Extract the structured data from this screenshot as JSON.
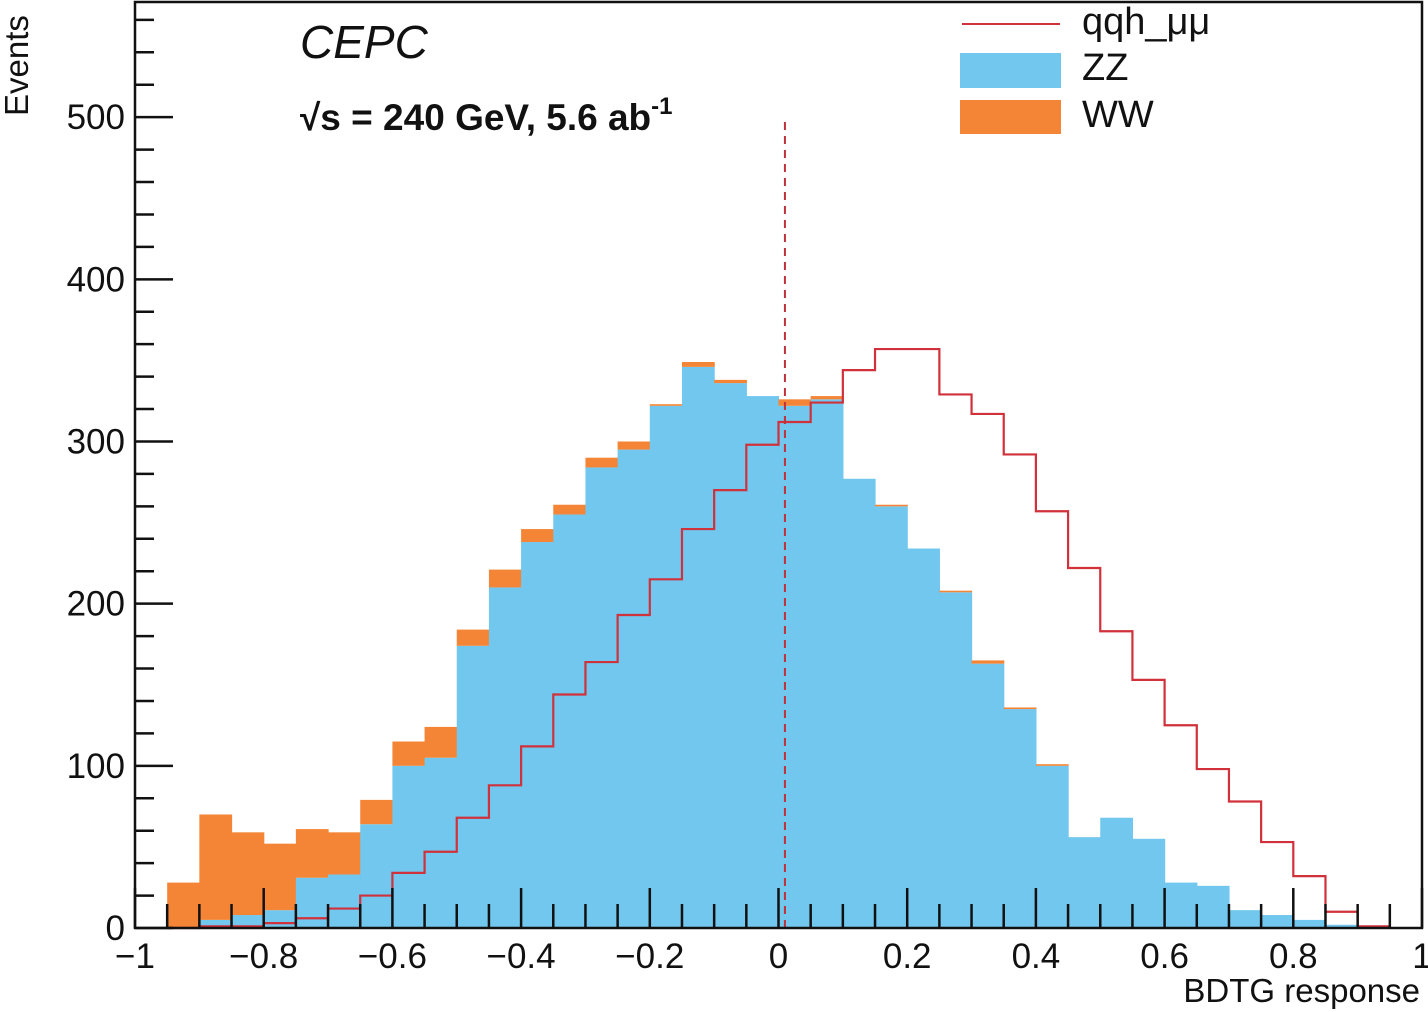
{
  "chart_data": {
    "type": "bar",
    "subtype": "stacked-histogram-with-step-line",
    "annotations": {
      "experiment": "CEPC",
      "energy_prefix": "√s = 240 GeV, 5.6 ab",
      "energy_superscript": "-1"
    },
    "xlabel": "BDTG response",
    "ylabel": "Events",
    "xlim": [
      -1,
      1
    ],
    "ylim": [
      0,
      571
    ],
    "x_major_ticks": [
      -1,
      -0.8,
      -0.6,
      -0.4,
      -0.2,
      0,
      0.2,
      0.4,
      0.6,
      0.8,
      1
    ],
    "x_tick_labels": [
      "−1",
      "−0.8",
      "−0.6",
      "−0.4",
      "−0.2",
      "0",
      "0.2",
      "0.4",
      "0.6",
      "0.8",
      "1"
    ],
    "x_minor_step": 0.05,
    "y_major_ticks": [
      0,
      100,
      200,
      300,
      400,
      500
    ],
    "y_tick_labels": [
      "0",
      "100",
      "200",
      "300",
      "400",
      "500"
    ],
    "y_minor_step": 20,
    "grid": false,
    "legend_position": "top-right",
    "bin_edges_start": -0.95,
    "bin_width": 0.05,
    "series": [
      {
        "name": "ZZ",
        "kind": "filled-stack",
        "color": "#71C7EE",
        "values": [
          0,
          5,
          8,
          11,
          31,
          33,
          64,
          100,
          105,
          174,
          210,
          238,
          255,
          284,
          295,
          322,
          346,
          336,
          328,
          322,
          326,
          277,
          260,
          234,
          207,
          163,
          135,
          100,
          56,
          68,
          55,
          28,
          26,
          11,
          8,
          5,
          2,
          0
        ]
      },
      {
        "name": "WW",
        "kind": "filled-stack",
        "color": "#F58536",
        "values": [
          28,
          65,
          51,
          41,
          30,
          26,
          15,
          15,
          19,
          10,
          11,
          8,
          6,
          6,
          5,
          1,
          3,
          2,
          0,
          4,
          2,
          0,
          1,
          0,
          1,
          2,
          1,
          1,
          0,
          0,
          0,
          0,
          0,
          0,
          0,
          0,
          0,
          0
        ]
      },
      {
        "name": "qqh_μμ",
        "kind": "step-line",
        "color": "#D0313A",
        "values": [
          0,
          1,
          1,
          3,
          6,
          12,
          20,
          34,
          47,
          68,
          88,
          112,
          144,
          164,
          193,
          215,
          246,
          270,
          298,
          312,
          324,
          344,
          357,
          357,
          329,
          317,
          292,
          257,
          222,
          183,
          153,
          125,
          98,
          78,
          53,
          32,
          10,
          1
        ]
      }
    ],
    "cut_line": {
      "x": 0.01,
      "y_top": 500,
      "style": "dashed",
      "color": "#C0313A"
    },
    "legend": [
      {
        "label": "qqh_μμ",
        "kind": "line",
        "color": "#D0313A"
      },
      {
        "label": "ZZ",
        "kind": "box",
        "color": "#71C7EE"
      },
      {
        "label": "WW",
        "kind": "box",
        "color": "#F58536"
      }
    ]
  }
}
